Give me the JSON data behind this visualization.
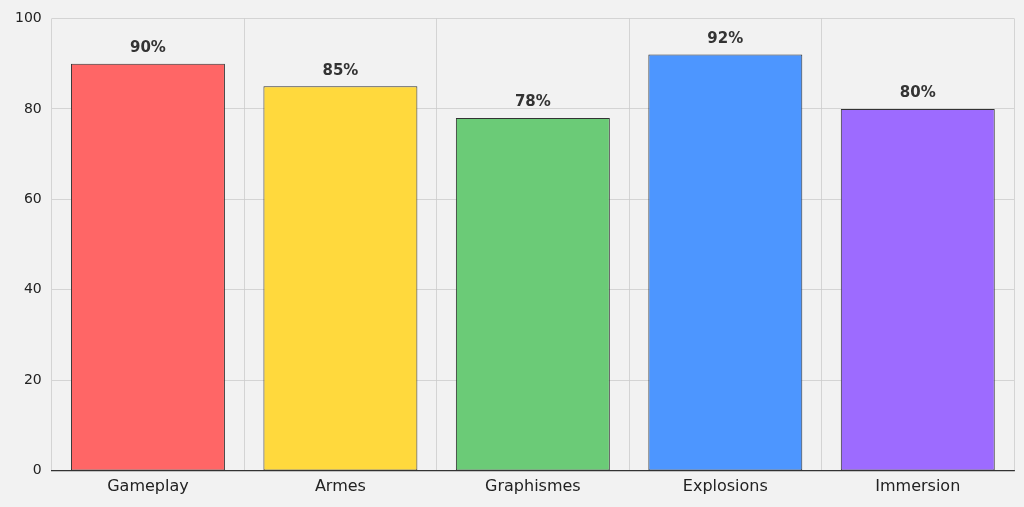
{
  "chart_data": {
    "type": "bar",
    "categories": [
      "Gameplay",
      "Armes",
      "Graphismes",
      "Explosions",
      "Immersion"
    ],
    "values": [
      90,
      85,
      78,
      92,
      80
    ],
    "colors": [
      "#ff6666",
      "#ffd93d",
      "#6bcb77",
      "#4d96ff",
      "#9d6bff"
    ],
    "value_labels": [
      "90%",
      "85%",
      "78%",
      "92%",
      "80%"
    ],
    "ylim": [
      0,
      100
    ],
    "yticks": [
      0,
      20,
      40,
      60,
      80,
      100
    ],
    "grid": true,
    "legend": false
  }
}
